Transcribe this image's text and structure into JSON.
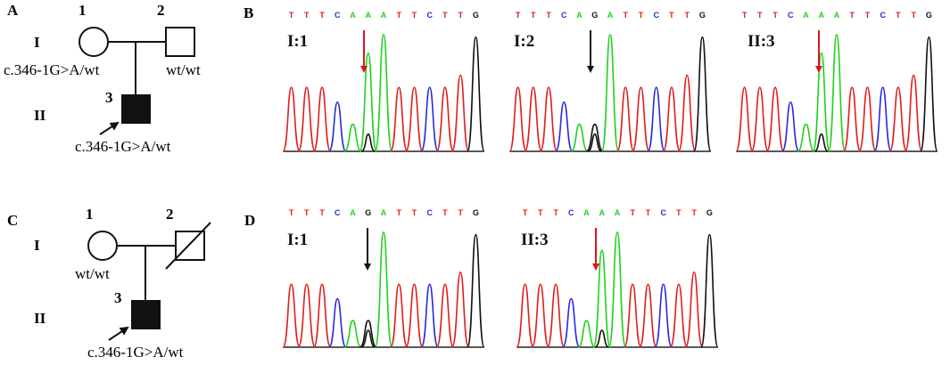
{
  "colors": {
    "A": "#1fd11f",
    "C": "#2a2ae0",
    "G": "#111111",
    "T": "#e01e1e",
    "arrow_red": "#e0141e",
    "arrow_black": "#111111"
  },
  "panels": {
    "A": {
      "letter": "A",
      "generations": [
        "I",
        "II"
      ],
      "individuals": [
        {
          "num": "1",
          "genotype": "c.346-1G>A/wt"
        },
        {
          "num": "2",
          "genotype": "wt/wt"
        },
        {
          "num": "3",
          "genotype": "c.346-1G>A/wt"
        }
      ]
    },
    "C": {
      "letter": "C",
      "generations": [
        "I",
        "II"
      ],
      "individuals": [
        {
          "num": "1",
          "genotype": "wt/wt"
        },
        {
          "num": "2",
          "genotype": ""
        },
        {
          "num": "3",
          "genotype": "c.346-1G>A/wt"
        }
      ]
    },
    "B": {
      "letter": "B",
      "traces": [
        {
          "label": "I:1",
          "sequence": [
            "T",
            "T",
            "T",
            "C",
            "A",
            "A",
            "A",
            "T",
            "T",
            "C",
            "T",
            "T",
            "G"
          ],
          "arrow": "red"
        },
        {
          "label": "I:2",
          "sequence": [
            "T",
            "T",
            "T",
            "C",
            "A",
            "G",
            "A",
            "T",
            "T",
            "C",
            "T",
            "T",
            "G"
          ],
          "arrow": "black"
        },
        {
          "label": "II:3",
          "sequence": [
            "T",
            "T",
            "T",
            "C",
            "A",
            "A",
            "A",
            "T",
            "T",
            "C",
            "T",
            "T",
            "G"
          ],
          "arrow": "red"
        }
      ]
    },
    "D": {
      "letter": "D",
      "traces": [
        {
          "label": "I:1",
          "sequence": [
            "T",
            "T",
            "T",
            "C",
            "A",
            "G",
            "A",
            "T",
            "T",
            "C",
            "T",
            "T",
            "G"
          ],
          "arrow": "black"
        },
        {
          "label": "II:3",
          "sequence": [
            "T",
            "T",
            "T",
            "C",
            "A",
            "A",
            "A",
            "T",
            "T",
            "C",
            "T",
            "T",
            "G"
          ],
          "arrow": "red"
        }
      ]
    }
  }
}
